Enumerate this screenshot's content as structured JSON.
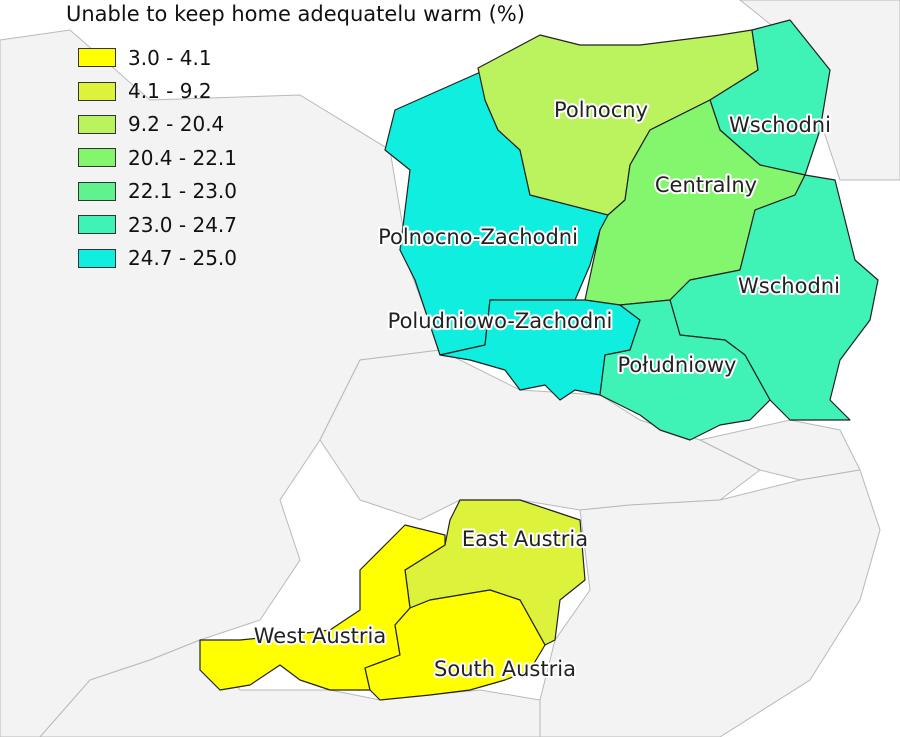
{
  "legend": {
    "title": "Unable to keep home adequatelu warm (%)",
    "classes": [
      {
        "label": "3.0 - 4.1",
        "color": "#ffff00"
      },
      {
        "label": "4.1 - 9.2",
        "color": "#ddf23a"
      },
      {
        "label": "9.2 - 20.4",
        "color": "#baf35d"
      },
      {
        "label": "20.4 - 22.1",
        "color": "#84f66e"
      },
      {
        "label": "22.1 - 23.0",
        "color": "#5ff28f"
      },
      {
        "label": "23.0 - 24.7",
        "color": "#3ff2b6"
      },
      {
        "label": "24.7 - 25.0",
        "color": "#10efdf"
      }
    ]
  },
  "regions": [
    {
      "name": "Polnocny",
      "value_class": "9.2 - 20.4",
      "color": "#baf35d"
    },
    {
      "name": "Polnocno-Zachodni",
      "value_class": "24.7 - 25.0",
      "color": "#10efdf"
    },
    {
      "name": "Poludniowo-Zachodni",
      "value_class": "24.7 - 25.0",
      "color": "#10efdf"
    },
    {
      "name": "Centralny",
      "value_class": "20.4 - 22.1",
      "color": "#84f66e"
    },
    {
      "name": "Wschodni",
      "value_class": "23.0 - 24.7",
      "color": "#3ff2b6"
    },
    {
      "name": "Wschodni",
      "value_class": "23.0 - 24.7",
      "color": "#3ff2b6"
    },
    {
      "name": "Południowy",
      "value_class": "23.0 - 24.7",
      "color": "#3ff2b6"
    },
    {
      "name": "East Austria",
      "value_class": "4.1 - 9.2",
      "color": "#ddf23a"
    },
    {
      "name": "West Austria",
      "value_class": "3.0 - 4.1",
      "color": "#ffff00"
    },
    {
      "name": "South Austria",
      "value_class": "3.0 - 4.1",
      "color": "#ffff00"
    }
  ]
}
